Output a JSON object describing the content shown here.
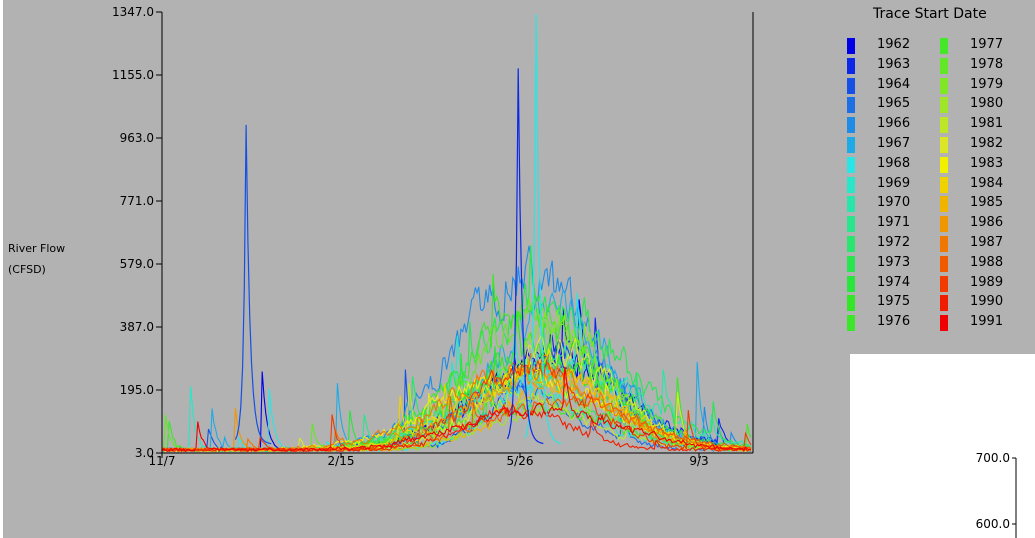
{
  "chart_data": {
    "type": "line",
    "ylabel_lines": [
      "River Flow",
      "(CFSD)"
    ],
    "yticks": [
      "3.0",
      "195.0",
      "387.0",
      "579.0",
      "771.0",
      "963.0",
      "1155.0",
      "1347.0"
    ],
    "ylim": [
      3.0,
      1347.0
    ],
    "xticks": [
      "11/7",
      "2/15",
      "5/26",
      "9/3"
    ],
    "xtick_day_positions": [
      0,
      100,
      200,
      300
    ],
    "xlim_days": [
      0,
      330
    ],
    "legend_title": "Trace Start Date",
    "legend_placement": "right",
    "series_years_start": 1962,
    "series": [
      {
        "name": "1962",
        "color": "#0000e6"
      },
      {
        "name": "1963",
        "color": "#0a28e6"
      },
      {
        "name": "1964",
        "color": "#1450e6"
      },
      {
        "name": "1965",
        "color": "#1e6ee6"
      },
      {
        "name": "1966",
        "color": "#1e8ce6"
      },
      {
        "name": "1967",
        "color": "#1eaae6"
      },
      {
        "name": "1968",
        "color": "#28e6e6"
      },
      {
        "name": "1969",
        "color": "#28e6c8"
      },
      {
        "name": "1970",
        "color": "#28e6aa"
      },
      {
        "name": "1971",
        "color": "#28e68c"
      },
      {
        "name": "1972",
        "color": "#28e66e"
      },
      {
        "name": "1973",
        "color": "#28e650"
      },
      {
        "name": "1974",
        "color": "#28e63c"
      },
      {
        "name": "1975",
        "color": "#32e628"
      },
      {
        "name": "1976",
        "color": "#3ce628"
      },
      {
        "name": "1977",
        "color": "#46e628"
      },
      {
        "name": "1978",
        "color": "#64e628"
      },
      {
        "name": "1979",
        "color": "#82e628"
      },
      {
        "name": "1980",
        "color": "#a0e628"
      },
      {
        "name": "1981",
        "color": "#bee628"
      },
      {
        "name": "1982",
        "color": "#dce628"
      },
      {
        "name": "1983",
        "color": "#f0f000"
      },
      {
        "name": "1984",
        "color": "#f0d200"
      },
      {
        "name": "1985",
        "color": "#f0b400"
      },
      {
        "name": "1986",
        "color": "#f09600"
      },
      {
        "name": "1987",
        "color": "#f07800"
      },
      {
        "name": "1988",
        "color": "#f05a00"
      },
      {
        "name": "1989",
        "color": "#f03c00"
      },
      {
        "name": "1990",
        "color": "#f01e00"
      },
      {
        "name": "1991",
        "color": "#f00000"
      }
    ],
    "inset": {
      "yticks": [
        "700.0",
        "600.0"
      ]
    }
  }
}
